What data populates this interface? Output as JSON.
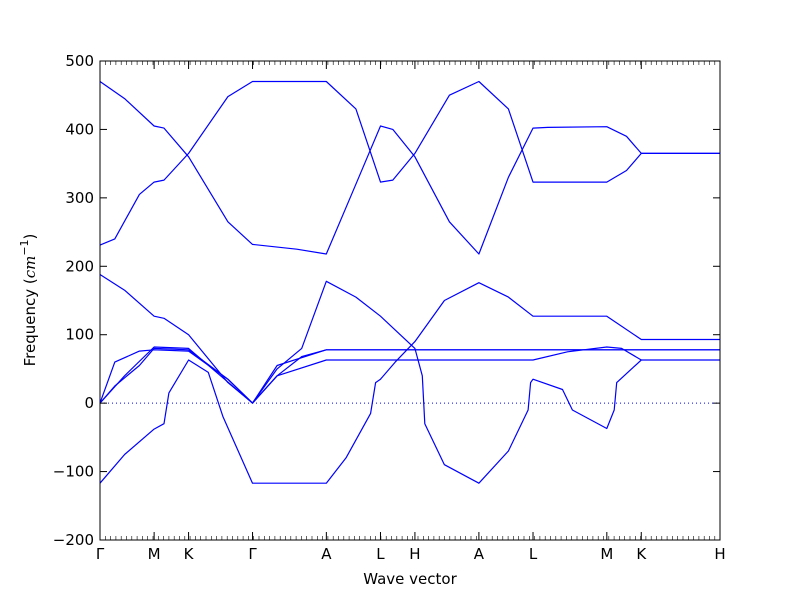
{
  "chart_data": {
    "type": "line",
    "title": "",
    "xlabel": "Wave vector",
    "ylabel": {
      "text": "Frequency (",
      "unit_base": "cm",
      "unit_exponent": "−1",
      "close": ")"
    },
    "ylim": [
      -200,
      500
    ],
    "yticks": [
      -200,
      -100,
      0,
      100,
      200,
      300,
      400,
      500
    ],
    "xlim": [
      0,
      12.6
    ],
    "xticks": [
      {
        "label": "Γ",
        "x": 0
      },
      {
        "label": "M",
        "x": 1.1
      },
      {
        "label": "K",
        "x": 1.8
      },
      {
        "label": "Γ",
        "x": 3.1
      },
      {
        "label": "A",
        "x": 4.6
      },
      {
        "label": "L",
        "x": 5.7
      },
      {
        "label": "H",
        "x": 6.4
      },
      {
        "label": "A",
        "x": 7.7
      },
      {
        "label": "L",
        "x": 8.8
      },
      {
        "label": "M",
        "x": 10.3
      },
      {
        "label": "K",
        "x": 11.0
      },
      {
        "label": "H",
        "x": 12.6
      }
    ],
    "zero_line": {
      "y": 0,
      "style": "dotted"
    },
    "line_color": "#0000ff",
    "series": [
      {
        "points": [
          [
            0,
            470
          ],
          [
            0.5,
            445
          ],
          [
            1.1,
            405
          ],
          [
            1.3,
            402
          ],
          [
            1.8,
            360
          ],
          [
            2.6,
            265
          ],
          [
            3.1,
            232
          ],
          [
            4.0,
            225
          ],
          [
            4.6,
            218
          ],
          [
            5.2,
            320
          ],
          [
            5.7,
            405
          ],
          [
            5.95,
            400
          ],
          [
            6.4,
            360
          ],
          [
            7.1,
            265
          ],
          [
            7.7,
            218
          ],
          [
            8.3,
            330
          ],
          [
            8.8,
            402
          ],
          [
            9.1,
            403
          ],
          [
            10.3,
            404
          ],
          [
            10.7,
            390
          ],
          [
            11.0,
            365
          ],
          [
            12.6,
            365
          ]
        ]
      },
      {
        "points": [
          [
            0,
            231
          ],
          [
            0.3,
            240
          ],
          [
            0.8,
            305
          ],
          [
            1.1,
            323
          ],
          [
            1.3,
            326
          ],
          [
            1.8,
            365
          ],
          [
            2.6,
            448
          ],
          [
            3.1,
            470
          ],
          [
            4.6,
            470
          ],
          [
            5.2,
            430
          ],
          [
            5.7,
            323
          ],
          [
            5.95,
            326
          ],
          [
            6.4,
            365
          ],
          [
            7.1,
            450
          ],
          [
            7.7,
            470
          ],
          [
            8.3,
            430
          ],
          [
            8.8,
            323
          ],
          [
            10.3,
            323
          ],
          [
            10.7,
            340
          ],
          [
            11.0,
            365
          ],
          [
            12.6,
            365
          ]
        ]
      },
      {
        "points": [
          [
            0,
            188
          ],
          [
            0.5,
            165
          ],
          [
            1.1,
            127
          ],
          [
            1.3,
            124
          ],
          [
            1.8,
            100
          ],
          [
            2.6,
            30
          ],
          [
            3.1,
            0
          ],
          [
            3.6,
            40
          ],
          [
            4.1,
            68
          ],
          [
            4.6,
            78
          ],
          [
            5.7,
            78
          ],
          [
            6.4,
            78
          ],
          [
            7.7,
            78
          ],
          [
            8.8,
            78
          ],
          [
            10.3,
            78
          ],
          [
            11.0,
            78
          ],
          [
            12.6,
            78
          ]
        ]
      },
      {
        "points": [
          [
            0,
            0
          ],
          [
            0.3,
            25
          ],
          [
            0.8,
            55
          ],
          [
            1.1,
            80
          ],
          [
            1.8,
            78
          ],
          [
            2.6,
            35
          ],
          [
            3.1,
            0
          ],
          [
            3.6,
            50
          ],
          [
            4.1,
            80
          ],
          [
            4.6,
            178
          ],
          [
            5.2,
            155
          ],
          [
            5.7,
            127
          ],
          [
            6.1,
            100
          ],
          [
            6.4,
            80
          ],
          [
            6.55,
            40
          ],
          [
            6.6,
            -30
          ],
          [
            7.0,
            -90
          ],
          [
            7.7,
            -117
          ],
          [
            8.3,
            -70
          ],
          [
            8.7,
            -10
          ],
          [
            8.75,
            30
          ],
          [
            8.8,
            35
          ],
          [
            9.4,
            20
          ],
          [
            9.6,
            -10
          ],
          [
            10.3,
            -37
          ],
          [
            10.45,
            -10
          ],
          [
            10.5,
            30
          ],
          [
            11.0,
            63
          ],
          [
            12.6,
            63
          ]
        ]
      },
      {
        "points": [
          [
            0,
            0
          ],
          [
            0.3,
            60
          ],
          [
            0.8,
            76
          ],
          [
            1.1,
            78
          ],
          [
            1.8,
            76
          ],
          [
            2.6,
            35
          ],
          [
            3.1,
            0
          ],
          [
            3.6,
            55
          ],
          [
            4.6,
            78
          ],
          [
            5.7,
            78
          ],
          [
            12.6,
            78
          ]
        ]
      },
      {
        "points": [
          [
            0,
            -117
          ],
          [
            0.5,
            -75
          ],
          [
            1.1,
            -38
          ],
          [
            1.3,
            -30
          ],
          [
            1.4,
            15
          ],
          [
            1.8,
            63
          ],
          [
            2.2,
            45
          ],
          [
            2.5,
            -20
          ],
          [
            3.1,
            -117
          ],
          [
            4.6,
            -117
          ],
          [
            5.0,
            -80
          ],
          [
            5.5,
            -15
          ],
          [
            5.6,
            30
          ],
          [
            5.7,
            35
          ],
          [
            6.0,
            60
          ],
          [
            6.4,
            90
          ],
          [
            7.0,
            150
          ],
          [
            7.7,
            176
          ],
          [
            8.3,
            155
          ],
          [
            8.8,
            127
          ],
          [
            10.3,
            127
          ],
          [
            11.0,
            93
          ],
          [
            12.6,
            93
          ]
        ]
      },
      {
        "points": [
          [
            0.0,
            0
          ],
          [
            0.5,
            40
          ],
          [
            1.1,
            82
          ],
          [
            1.8,
            80
          ],
          [
            3.1,
            0
          ],
          [
            3.6,
            40
          ],
          [
            4.6,
            63
          ],
          [
            5.7,
            63
          ],
          [
            8.8,
            63
          ],
          [
            9.5,
            75
          ],
          [
            10.3,
            82
          ],
          [
            10.6,
            80
          ],
          [
            11.0,
            63
          ]
        ]
      }
    ]
  }
}
